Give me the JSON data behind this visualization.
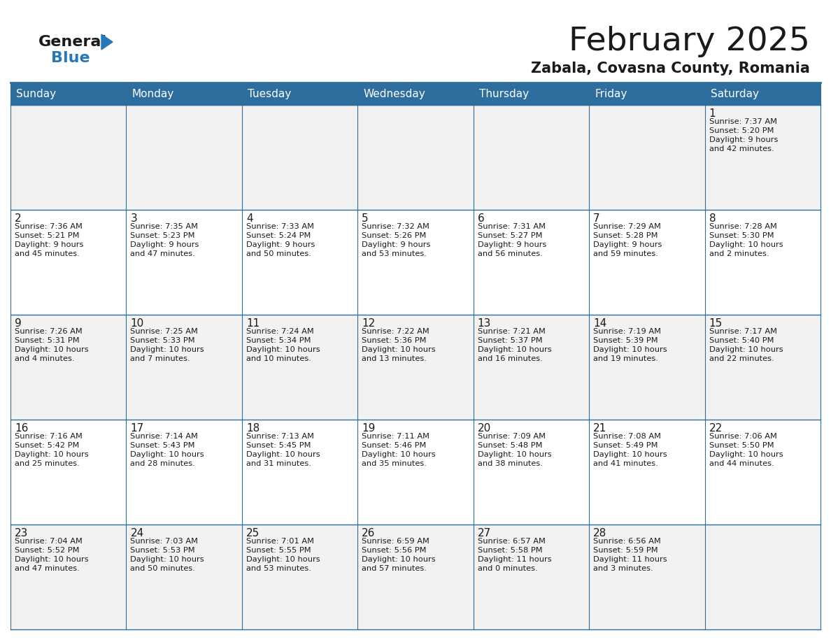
{
  "title": "February 2025",
  "subtitle": "Zabala, Covasna County, Romania",
  "header_bg": "#2E6E9E",
  "header_text_color": "#FFFFFF",
  "border_color": "#2E6E9E",
  "day_names": [
    "Sunday",
    "Monday",
    "Tuesday",
    "Wednesday",
    "Thursday",
    "Friday",
    "Saturday"
  ],
  "weeks": [
    [
      {
        "day": "",
        "sunrise": "",
        "sunset": "",
        "daylight": ""
      },
      {
        "day": "",
        "sunrise": "",
        "sunset": "",
        "daylight": ""
      },
      {
        "day": "",
        "sunrise": "",
        "sunset": "",
        "daylight": ""
      },
      {
        "day": "",
        "sunrise": "",
        "sunset": "",
        "daylight": ""
      },
      {
        "day": "",
        "sunrise": "",
        "sunset": "",
        "daylight": ""
      },
      {
        "day": "",
        "sunrise": "",
        "sunset": "",
        "daylight": ""
      },
      {
        "day": "1",
        "sunrise": "7:37 AM",
        "sunset": "5:20 PM",
        "daylight": "9 hours\nand 42 minutes."
      }
    ],
    [
      {
        "day": "2",
        "sunrise": "7:36 AM",
        "sunset": "5:21 PM",
        "daylight": "9 hours\nand 45 minutes."
      },
      {
        "day": "3",
        "sunrise": "7:35 AM",
        "sunset": "5:23 PM",
        "daylight": "9 hours\nand 47 minutes."
      },
      {
        "day": "4",
        "sunrise": "7:33 AM",
        "sunset": "5:24 PM",
        "daylight": "9 hours\nand 50 minutes."
      },
      {
        "day": "5",
        "sunrise": "7:32 AM",
        "sunset": "5:26 PM",
        "daylight": "9 hours\nand 53 minutes."
      },
      {
        "day": "6",
        "sunrise": "7:31 AM",
        "sunset": "5:27 PM",
        "daylight": "9 hours\nand 56 minutes."
      },
      {
        "day": "7",
        "sunrise": "7:29 AM",
        "sunset": "5:28 PM",
        "daylight": "9 hours\nand 59 minutes."
      },
      {
        "day": "8",
        "sunrise": "7:28 AM",
        "sunset": "5:30 PM",
        "daylight": "10 hours\nand 2 minutes."
      }
    ],
    [
      {
        "day": "9",
        "sunrise": "7:26 AM",
        "sunset": "5:31 PM",
        "daylight": "10 hours\nand 4 minutes."
      },
      {
        "day": "10",
        "sunrise": "7:25 AM",
        "sunset": "5:33 PM",
        "daylight": "10 hours\nand 7 minutes."
      },
      {
        "day": "11",
        "sunrise": "7:24 AM",
        "sunset": "5:34 PM",
        "daylight": "10 hours\nand 10 minutes."
      },
      {
        "day": "12",
        "sunrise": "7:22 AM",
        "sunset": "5:36 PM",
        "daylight": "10 hours\nand 13 minutes."
      },
      {
        "day": "13",
        "sunrise": "7:21 AM",
        "sunset": "5:37 PM",
        "daylight": "10 hours\nand 16 minutes."
      },
      {
        "day": "14",
        "sunrise": "7:19 AM",
        "sunset": "5:39 PM",
        "daylight": "10 hours\nand 19 minutes."
      },
      {
        "day": "15",
        "sunrise": "7:17 AM",
        "sunset": "5:40 PM",
        "daylight": "10 hours\nand 22 minutes."
      }
    ],
    [
      {
        "day": "16",
        "sunrise": "7:16 AM",
        "sunset": "5:42 PM",
        "daylight": "10 hours\nand 25 minutes."
      },
      {
        "day": "17",
        "sunrise": "7:14 AM",
        "sunset": "5:43 PM",
        "daylight": "10 hours\nand 28 minutes."
      },
      {
        "day": "18",
        "sunrise": "7:13 AM",
        "sunset": "5:45 PM",
        "daylight": "10 hours\nand 31 minutes."
      },
      {
        "day": "19",
        "sunrise": "7:11 AM",
        "sunset": "5:46 PM",
        "daylight": "10 hours\nand 35 minutes."
      },
      {
        "day": "20",
        "sunrise": "7:09 AM",
        "sunset": "5:48 PM",
        "daylight": "10 hours\nand 38 minutes."
      },
      {
        "day": "21",
        "sunrise": "7:08 AM",
        "sunset": "5:49 PM",
        "daylight": "10 hours\nand 41 minutes."
      },
      {
        "day": "22",
        "sunrise": "7:06 AM",
        "sunset": "5:50 PM",
        "daylight": "10 hours\nand 44 minutes."
      }
    ],
    [
      {
        "day": "23",
        "sunrise": "7:04 AM",
        "sunset": "5:52 PM",
        "daylight": "10 hours\nand 47 minutes."
      },
      {
        "day": "24",
        "sunrise": "7:03 AM",
        "sunset": "5:53 PM",
        "daylight": "10 hours\nand 50 minutes."
      },
      {
        "day": "25",
        "sunrise": "7:01 AM",
        "sunset": "5:55 PM",
        "daylight": "10 hours\nand 53 minutes."
      },
      {
        "day": "26",
        "sunrise": "6:59 AM",
        "sunset": "5:56 PM",
        "daylight": "10 hours\nand 57 minutes."
      },
      {
        "day": "27",
        "sunrise": "6:57 AM",
        "sunset": "5:58 PM",
        "daylight": "11 hours\nand 0 minutes."
      },
      {
        "day": "28",
        "sunrise": "6:56 AM",
        "sunset": "5:59 PM",
        "daylight": "11 hours\nand 3 minutes."
      },
      {
        "day": "",
        "sunrise": "",
        "sunset": "",
        "daylight": ""
      }
    ]
  ]
}
